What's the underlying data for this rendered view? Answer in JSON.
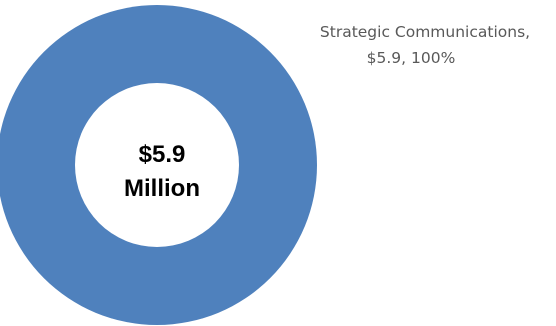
{
  "chart_data": {
    "type": "pie",
    "style": "donut",
    "slices": [
      {
        "name": "Strategic Communications",
        "value": 5.9,
        "percent": 100,
        "color": "#4f81bd",
        "label_line1": "Strategic Communications,",
        "label_line2": "$5.9, 100%"
      }
    ],
    "center_label": {
      "line1": "$5.9",
      "line2": "Million"
    },
    "legend": "none"
  }
}
